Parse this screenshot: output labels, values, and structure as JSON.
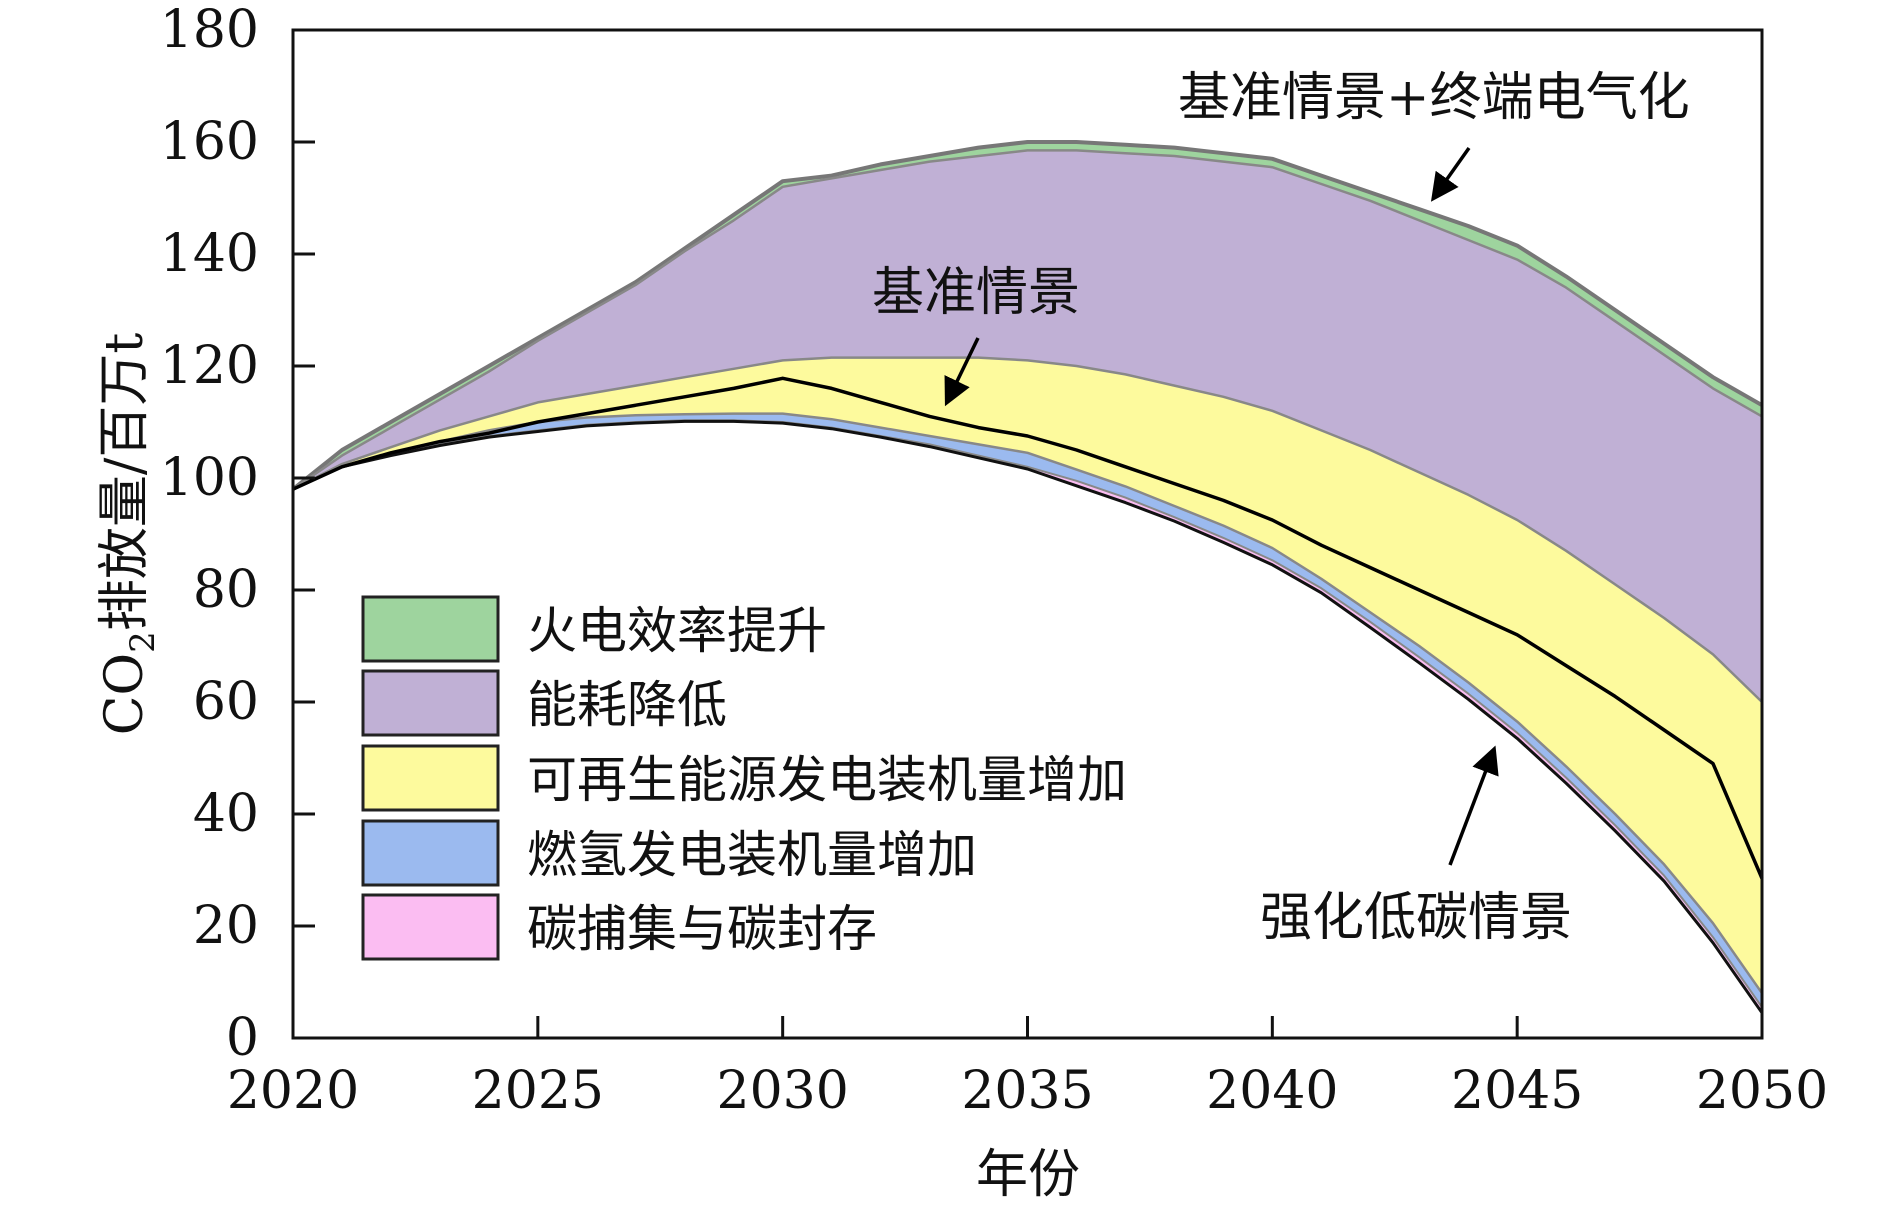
{
  "chart_data": {
    "type": "area",
    "xlabel": "年份",
    "ylabel_main": "CO",
    "ylabel_sub": "2",
    "ylabel_rest": "排放量/百万t",
    "xlim": [
      2020,
      2050
    ],
    "ylim": [
      0,
      180
    ],
    "x_ticks": [
      "2020",
      "2025",
      "2030",
      "2035",
      "2040",
      "2045",
      "2050"
    ],
    "y_ticks": [
      "0",
      "20",
      "40",
      "60",
      "80",
      "100",
      "120",
      "140",
      "160",
      "180"
    ],
    "grid": false,
    "legend_position": "lower-left",
    "x": [
      2020,
      2021,
      2022,
      2023,
      2024,
      2025,
      2026,
      2027,
      2028,
      2029,
      2030,
      2031,
      2032,
      2033,
      2034,
      2035,
      2036,
      2037,
      2038,
      2039,
      2040,
      2041,
      2042,
      2043,
      2044,
      2045,
      2046,
      2047,
      2048,
      2049,
      2050
    ],
    "boundaries": {
      "baseline_plus_electrification": [
        98,
        105,
        110,
        115,
        120,
        125,
        130,
        135,
        141,
        147,
        153,
        154,
        156,
        157.5,
        159,
        160,
        160,
        159.5,
        159,
        158,
        157,
        154,
        151,
        148,
        145,
        141.5,
        136,
        130,
        124,
        118,
        113
      ],
      "after_efficiency": [
        98,
        104,
        109,
        114,
        119,
        124.5,
        129.5,
        134.5,
        140.5,
        146,
        152,
        153.5,
        155,
        156.5,
        157.5,
        158.5,
        158.5,
        158,
        157.5,
        156.5,
        155.5,
        152.5,
        149.5,
        146,
        142.5,
        139,
        134,
        128,
        122,
        116,
        111
      ],
      "after_energy_reduction": [
        98,
        102.5,
        105.5,
        108.5,
        111,
        113.5,
        115,
        116.5,
        118,
        119.5,
        121,
        121.5,
        121.5,
        121.5,
        121.5,
        121,
        120,
        118.5,
        116.5,
        114.5,
        112,
        108.5,
        105,
        101,
        97,
        92.5,
        87,
        81,
        75,
        68.5,
        60
      ],
      "after_renewables": [
        98,
        102,
        104.5,
        106.5,
        108.5,
        110,
        110.8,
        111.2,
        111.4,
        111.5,
        111.5,
        110.5,
        109,
        107.5,
        106,
        104.5,
        101.5,
        98.5,
        95,
        91.5,
        87.5,
        82,
        76,
        70,
        63.5,
        56.5,
        48.5,
        40,
        31,
        20.5,
        8
      ],
      "after_hydrogen": [
        98,
        102,
        104.2,
        106,
        107.5,
        108.5,
        109.5,
        110,
        110.3,
        110.3,
        110,
        109,
        107.5,
        106,
        104,
        102,
        99.5,
        96.5,
        93,
        89.3,
        85.3,
        80.3,
        74.3,
        68,
        61.5,
        54.5,
        46.5,
        38,
        29,
        18,
        5.5
      ],
      "after_ccs": [
        98,
        102,
        104,
        105.8,
        107.3,
        108.3,
        109.3,
        109.8,
        110.1,
        110.1,
        109.8,
        108.8,
        107.3,
        105.6,
        103.6,
        101.6,
        98.6,
        95.6,
        92.3,
        88.5,
        84.5,
        79.5,
        73.3,
        67,
        60.5,
        53.5,
        45.5,
        37,
        28,
        17,
        4.5
      ],
      "baseline": [
        98,
        102,
        104.5,
        106.5,
        108,
        110,
        111.5,
        113,
        114.5,
        116,
        117.8,
        116,
        113.5,
        111,
        109,
        107.5,
        105,
        102,
        99,
        96,
        92.5,
        88,
        84,
        80,
        76,
        72,
        66.5,
        61,
        55,
        49,
        28.5
      ]
    },
    "series": [
      {
        "name": "火电效率提升",
        "color": "#9ed49e"
      },
      {
        "name": "能耗降低",
        "color": "#c0b0d5"
      },
      {
        "name": "可再生能源发电装机量增加",
        "color": "#fdfa9d"
      },
      {
        "name": "燃氢发电装机量增加",
        "color": "#9bbaef"
      },
      {
        "name": "碳捕集与碳封存",
        "color": "#fbbdf2"
      }
    ],
    "annotations": {
      "top": "基准情景+终端电气化",
      "middle": "基准情景",
      "bottom": "强化低碳情景"
    }
  }
}
